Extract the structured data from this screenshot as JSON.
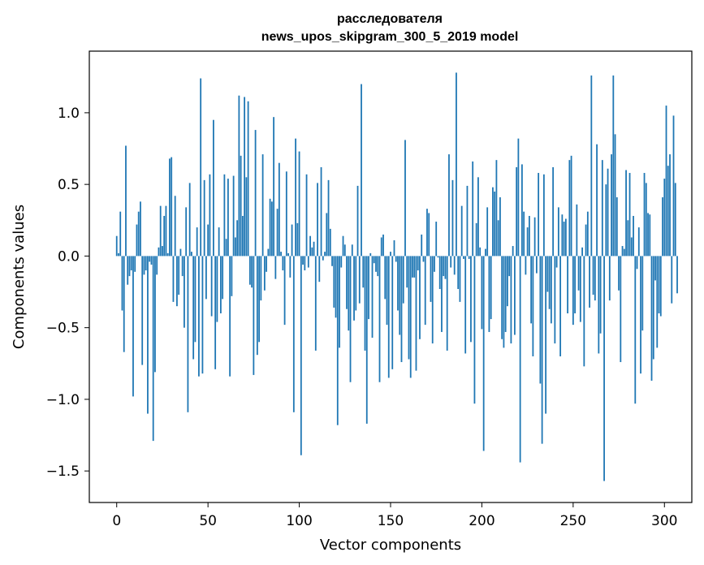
{
  "chart_data": {
    "type": "bar",
    "title_lines": [
      "расследователя",
      "news_upos_skipgram_300_5_2019 model"
    ],
    "xlabel": "Vector components",
    "ylabel": "Components values",
    "xlim": [
      -15,
      315
    ],
    "ylim": [
      -1.72,
      1.43
    ],
    "xticks": [
      0,
      50,
      100,
      150,
      200,
      250,
      300
    ],
    "yticks": [
      -1.5,
      -1.0,
      -0.5,
      0.0,
      0.5,
      1.0
    ],
    "ytick_labels": [
      "−1.5",
      "−1.0",
      "−0.5",
      "0.0",
      "0.5",
      "1.0"
    ],
    "bar_color": "#1f77b4",
    "values": [
      0.14,
      0.02,
      0.31,
      -0.38,
      -0.67,
      0.77,
      -0.2,
      -0.14,
      -0.1,
      -0.98,
      -0.11,
      0.22,
      0.31,
      0.38,
      -0.76,
      -0.13,
      -0.1,
      -1.1,
      -0.04,
      -0.06,
      -1.29,
      -0.81,
      -0.13,
      0.06,
      0.35,
      0.07,
      0.28,
      0.35,
      0.02,
      0.68,
      0.69,
      -0.32,
      0.42,
      -0.35,
      -0.27,
      0.05,
      -0.14,
      -0.5,
      0.34,
      -1.09,
      0.51,
      0.03,
      -0.72,
      -0.6,
      0.2,
      -0.84,
      1.24,
      -0.82,
      0.53,
      -0.3,
      0.22,
      0.57,
      -0.42,
      0.95,
      -0.79,
      -0.46,
      0.2,
      -0.4,
      -0.3,
      0.57,
      0.12,
      0.54,
      -0.84,
      -0.28,
      0.56,
      0.13,
      0.25,
      1.12,
      0.7,
      0.28,
      1.11,
      0.55,
      1.08,
      -0.2,
      -0.22,
      -0.83,
      0.88,
      -0.69,
      -0.6,
      -0.31,
      0.71,
      -0.24,
      -0.11,
      0.05,
      0.4,
      0.38,
      0.97,
      -0.16,
      0.33,
      0.65,
      0.03,
      -0.1,
      -0.48,
      0.59,
      0.02,
      -0.15,
      0.22,
      -1.09,
      0.82,
      0.23,
      0.73,
      -1.39,
      -0.06,
      -0.1,
      0.57,
      -0.08,
      0.14,
      0.06,
      0.1,
      -0.66,
      0.51,
      -0.18,
      0.62,
      -0.03,
      0.03,
      0.3,
      0.53,
      0.19,
      -0.07,
      -0.36,
      -0.43,
      -1.18,
      -0.64,
      -0.08,
      0.14,
      0.08,
      -0.37,
      -0.52,
      -0.88,
      0.08,
      -0.45,
      -0.38,
      0.49,
      -0.33,
      1.2,
      -0.22,
      -0.66,
      -1.17,
      -0.44,
      0.02,
      -0.57,
      -0.05,
      -0.11,
      -0.14,
      -0.88,
      0.13,
      0.15,
      -0.3,
      -0.48,
      -0.85,
      0.03,
      -0.79,
      0.11,
      -0.04,
      -0.38,
      -0.55,
      -0.74,
      -0.33,
      0.81,
      -0.22,
      -0.72,
      -0.85,
      -0.15,
      -0.15,
      -0.8,
      -0.1,
      -0.58,
      0.15,
      -0.04,
      -0.48,
      0.33,
      0.3,
      -0.32,
      -0.61,
      -0.11,
      0.24,
      -0.01,
      -0.23,
      -0.53,
      -0.14,
      -0.16,
      -0.66,
      0.71,
      -0.08,
      0.53,
      -0.13,
      1.28,
      -0.23,
      -0.32,
      0.35,
      -0.02,
      -0.68,
      0.49,
      -0.02,
      -0.6,
      0.66,
      -1.03,
      0.23,
      0.55,
      0.06,
      -0.51,
      -1.36,
      0.05,
      0.34,
      -0.53,
      -0.44,
      0.48,
      0.45,
      0.67,
      0.25,
      0.41,
      -0.58,
      -0.64,
      -0.53,
      -0.35,
      -0.14,
      -0.61,
      0.07,
      -0.55,
      0.62,
      0.82,
      -1.44,
      0.64,
      0.31,
      -0.13,
      0.2,
      0.28,
      -0.47,
      -0.7,
      0.27,
      -0.12,
      0.58,
      -0.89,
      -1.31,
      0.57,
      -1.1,
      -0.25,
      -0.37,
      -0.47,
      0.62,
      -0.61,
      -0.08,
      0.34,
      -0.7,
      0.29,
      0.24,
      0.26,
      -0.4,
      0.67,
      0.7,
      -0.48,
      -0.4,
      0.36,
      -0.24,
      -0.46,
      0.06,
      -0.77,
      0.22,
      0.31,
      -0.36,
      1.26,
      -0.27,
      -0.31,
      0.78,
      -0.68,
      -0.54,
      0.67,
      -1.57,
      0.5,
      0.61,
      -0.31,
      0.71,
      1.26,
      0.85,
      0.41,
      -0.24,
      -0.74,
      0.07,
      0.05,
      0.6,
      0.25,
      0.58,
      0.13,
      0.28,
      -1.03,
      -0.09,
      0.2,
      -0.82,
      -0.52,
      0.58,
      0.51,
      0.3,
      0.29,
      -0.87,
      -0.72,
      -0.17,
      -0.64,
      -0.4,
      -0.42,
      0.41,
      0.54,
      1.05,
      0.63,
      0.71,
      -0.33,
      0.98,
      0.51,
      -0.26
    ]
  }
}
